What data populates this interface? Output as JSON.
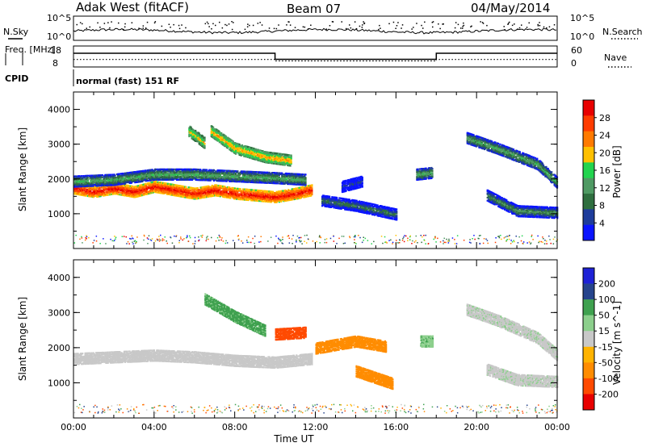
{
  "header": {
    "station": "Adak West (fitACF)",
    "beam": "Beam 07",
    "date": "04/May/2014"
  },
  "colors": {
    "axis": "#000000",
    "power_scale": [
      "#0a14ff",
      "#1e3c9b",
      "#2f6f3f",
      "#4f9a63",
      "#22d44e",
      "#ffc000",
      "#ff7a00",
      "#ff3c00",
      "#e80000"
    ],
    "velocity_scale": [
      "#e80000",
      "#ff4a00",
      "#ff8c00",
      "#ffb300",
      "#c8c8c8",
      "#8ccf8c",
      "#3fa14f",
      "#26448c",
      "#1e22d6"
    ]
  },
  "chart_data": [
    {
      "type": "line",
      "name": "noise-search-panel",
      "ylabel_left": "N.Sky",
      "ylabel_right": "N.Search",
      "left_ticks": [
        "10^5",
        "10^0"
      ],
      "right_ticks": [
        "10^5",
        "10^0"
      ],
      "series": [
        {
          "name": "N.Sky",
          "style": "solid"
        },
        {
          "name": "N.Search",
          "style": "dotted"
        }
      ]
    },
    {
      "type": "line",
      "name": "frequency-nave-panel",
      "ylabel_left": "Freq. [MHz]",
      "ylabel_right": "Nave",
      "left_ticks": [
        18,
        8
      ],
      "right_ticks": [
        60,
        0
      ],
      "x": [
        "00:00",
        "10:00",
        "10:00",
        "18:00",
        "18:00",
        "24:00"
      ],
      "freq_mhz": [
        14.8,
        14.8,
        11.4,
        11.4,
        14.8,
        14.8
      ],
      "nave": [
        20,
        20,
        15,
        15,
        20,
        20
      ],
      "series": [
        {
          "name": "Freq.",
          "style": "solid"
        },
        {
          "name": "Nave",
          "style": "dotted"
        }
      ]
    },
    {
      "type": "table",
      "name": "cpid-row",
      "label": "CPID",
      "entries": [
        {
          "text": "normal (fast) 151 RF"
        }
      ]
    },
    {
      "type": "heatmap",
      "name": "power-panel",
      "ylabel": "Slant Range [km]",
      "yticks": [
        1000,
        2000,
        3000,
        4000
      ],
      "ylim": [
        0,
        4500
      ],
      "xlim_hours": [
        0,
        24
      ],
      "colorbar_label": "Power [dB]",
      "colorbar_ticks": [
        4,
        8,
        12,
        16,
        20,
        24,
        28
      ],
      "colorbar_range": [
        0,
        32
      ],
      "bands": [
        {
          "t": [
            0,
            1,
            2,
            3,
            4,
            5,
            6,
            7,
            8,
            9,
            10,
            11,
            11.8
          ],
          "range_km": [
            1750,
            1650,
            1750,
            1650,
            1800,
            1700,
            1600,
            1700,
            1600,
            1550,
            1500,
            1600,
            1700
          ],
          "power_db": 30
        },
        {
          "t": [
            0,
            2,
            4,
            6,
            8,
            10,
            11.5
          ],
          "range_km": [
            1950,
            2000,
            2150,
            2150,
            2100,
            2050,
            2000
          ],
          "power_db": 14
        },
        {
          "t": [
            6.8,
            8,
            9.5,
            10.8
          ],
          "range_km": [
            3400,
            2900,
            2650,
            2550
          ],
          "power_db": 22
        },
        {
          "t": [
            5.7,
            6.5
          ],
          "range_km": [
            3400,
            3050
          ],
          "power_db": 20
        },
        {
          "t": [
            12.3,
            14,
            16
          ],
          "range_km": [
            1400,
            1250,
            1000
          ],
          "power_db": 10
        },
        {
          "t": [
            13.3,
            14.3
          ],
          "range_km": [
            1800,
            1950
          ],
          "power_db": 6
        },
        {
          "t": [
            19.5,
            21,
            23,
            24
          ],
          "range_km": [
            3200,
            2900,
            2450,
            1900
          ],
          "power_db": 14
        },
        {
          "t": [
            20.5,
            22,
            24
          ],
          "range_km": [
            1550,
            1100,
            1050
          ],
          "power_db": 12
        },
        {
          "t": [
            17,
            17.8
          ],
          "range_km": [
            2150,
            2200
          ],
          "power_db": 14
        }
      ]
    },
    {
      "type": "heatmap",
      "name": "velocity-panel",
      "ylabel": "Slant Range [km]",
      "yticks": [
        1000,
        2000,
        3000,
        4000
      ],
      "ylim": [
        0,
        4500
      ],
      "xlim_hours": [
        0,
        24
      ],
      "xtick_labels": [
        "00:00",
        "04:00",
        "08:00",
        "12:00",
        "16:00",
        "20:00",
        "00:00"
      ],
      "xlabel": "Time UT",
      "colorbar_label": "Velocity [m s^-1]",
      "colorbar_ticks": [
        -200,
        -100,
        -50,
        -15,
        15,
        50,
        100,
        200
      ],
      "bands": [
        {
          "t": [
            0,
            2,
            4,
            6,
            8,
            10,
            11.8
          ],
          "range_km": [
            1700,
            1750,
            1800,
            1750,
            1650,
            1600,
            1700
          ],
          "velocity": 0
        },
        {
          "t": [
            6.5,
            8,
            9.5
          ],
          "range_km": [
            3400,
            2900,
            2500
          ],
          "velocity": 60
        },
        {
          "t": [
            10,
            11.5
          ],
          "range_km": [
            2400,
            2450
          ],
          "velocity": -150
        },
        {
          "t": [
            12,
            14,
            15.5
          ],
          "range_km": [
            2000,
            2200,
            2050
          ],
          "velocity": -80
        },
        {
          "t": [
            14,
            15.8
          ],
          "range_km": [
            1350,
            1000
          ],
          "velocity": -70
        },
        {
          "t": [
            17.2,
            17.8
          ],
          "range_km": [
            2200,
            2200
          ],
          "velocity": 40
        },
        {
          "t": [
            19.5,
            21,
            23,
            24
          ],
          "range_km": [
            3100,
            2800,
            2300,
            1800
          ],
          "velocity": 5
        },
        {
          "t": [
            20.5,
            22,
            24
          ],
          "range_km": [
            1400,
            1100,
            1050
          ],
          "velocity": 5
        }
      ]
    }
  ]
}
